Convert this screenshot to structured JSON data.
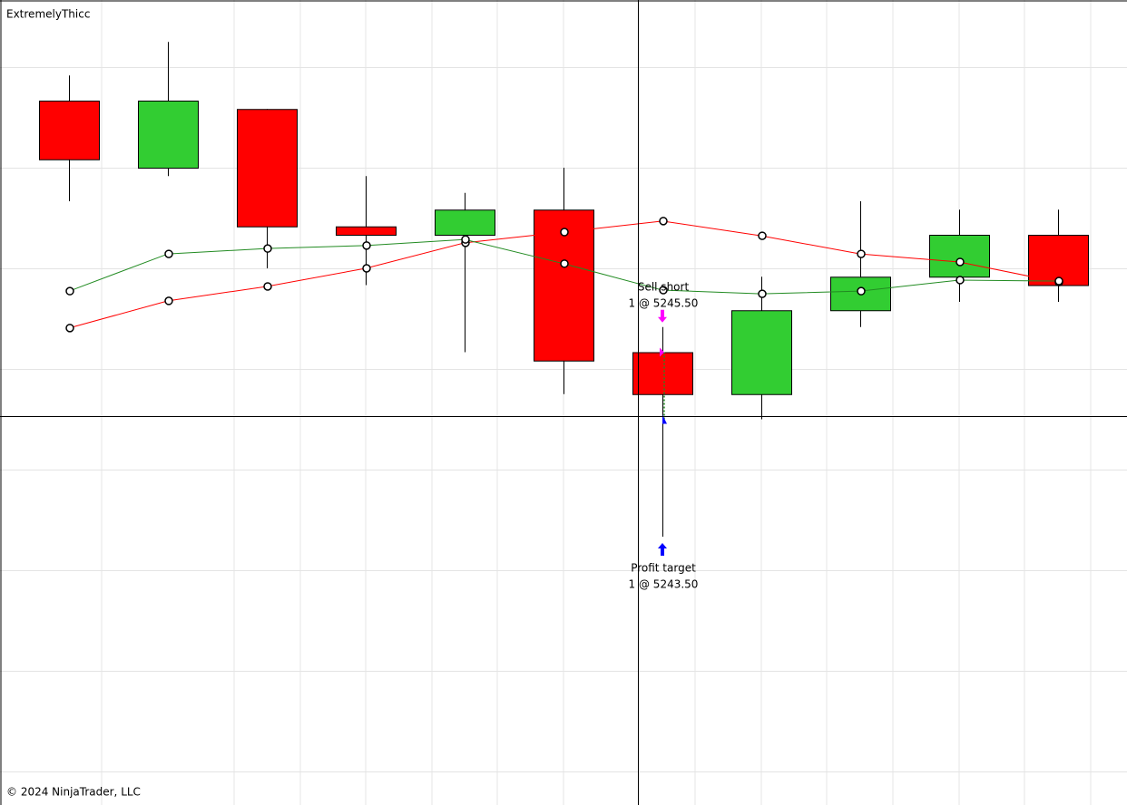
{
  "chart_data": {
    "type": "candlestick",
    "title": "ExtremelyThicc",
    "footer": "© 2024 NinjaTrader, LLC",
    "categories": [
      null,
      null,
      null,
      null,
      null,
      null,
      null,
      null,
      null,
      null,
      null
    ],
    "open": [
      5253,
      5251,
      5252.75,
      5249.25,
      5249,
      5249.75,
      5245.5,
      5244.25,
      5246.75,
      5247.75,
      5249
    ],
    "high": [
      5253.75,
      5254.75,
      5252.75,
      5250.75,
      5250.25,
      5251,
      5246.25,
      5247.75,
      5250,
      5249.75,
      5249.75
    ],
    "low": [
      5250,
      5250.75,
      5248,
      5247.5,
      5245.5,
      5244.25,
      5240,
      5243.5,
      5246.25,
      5247,
      5247
    ],
    "close": [
      5251.25,
      5253,
      5249.25,
      5249,
      5249.75,
      5245.25,
      5244.25,
      5246.75,
      5247.75,
      5249,
      5247.5
    ],
    "up_color": "#32cd32",
    "down_color": "#ff0000",
    "lines": [
      {
        "color": "#ff0000",
        "values": [
          5246.22,
          5247.03,
          5247.46,
          5248,
          5248.76,
          5249.08,
          5249.41,
          5248.97,
          5248.43,
          5248.19,
          5247.59
        ]
      },
      {
        "color": "#228b22",
        "values": [
          5247.32,
          5248.43,
          5248.59,
          5248.68,
          5248.86,
          5248.14,
          5247.35,
          5247.24,
          5247.32,
          5247.65,
          5247.62
        ]
      }
    ],
    "ylim": [
      5232,
      5256
    ],
    "ygrid": [
      5254,
      5251,
      5248,
      5245,
      5242,
      5239,
      5236,
      5233
    ],
    "executions": [
      {
        "label": "Sell short",
        "detail": "1 @ 5245.50",
        "price": 5245.5,
        "bar": 6,
        "color": "#ff00ff",
        "direction": "down"
      },
      {
        "label": "Profit target",
        "detail": "1 @ 5243.50",
        "price": 5243.5,
        "bar": 6,
        "color": "#0000ff",
        "direction": "up"
      }
    ]
  }
}
